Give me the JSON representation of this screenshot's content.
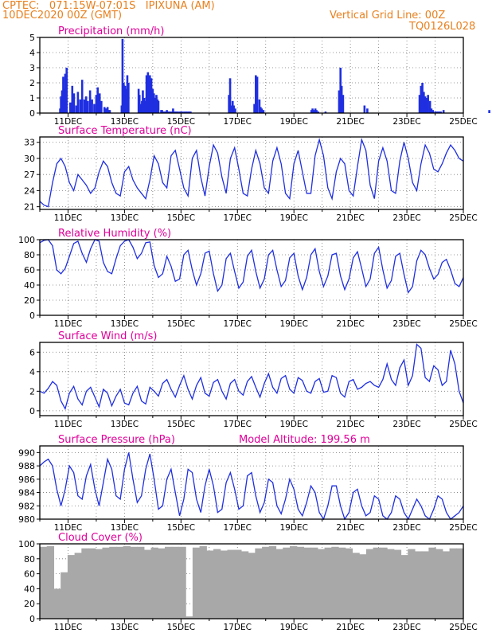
{
  "header": {
    "line1": "CPTEC:   071:15W-07:01S   IPIXUNA (AM)",
    "line2": "10DEC2020 00Z (GMT)",
    "grid_note": "Vertical Grid Line: 00Z",
    "code": "TQ0126L028"
  },
  "colors": {
    "header": "#e8801e",
    "title": "#e0009a",
    "series": "#1f2fe0",
    "cloud": "#a8a8a8",
    "grid": "#777777"
  },
  "chart_data": [
    {
      "type": "bar",
      "title": "Precipitation (mm/h)",
      "xlabels": [
        "11DEC",
        "13DEC",
        "15DEC",
        "17DEC",
        "19DEC",
        "21DEC",
        "23DEC",
        "25DEC"
      ],
      "ylim": [
        0,
        5
      ],
      "yticks": [
        0,
        1,
        2,
        3,
        4,
        5
      ],
      "x": [
        0.72,
        0.75,
        0.79,
        0.83,
        0.87,
        0.9,
        0.95,
        1.08,
        1.15,
        1.21,
        1.29,
        1.35,
        1.43,
        1.5,
        1.58,
        1.64,
        1.7,
        1.78,
        1.85,
        1.93,
        2.0,
        2.05,
        2.12,
        2.18,
        2.29,
        2.32,
        2.36,
        2.4,
        2.44,
        2.48,
        2.9,
        2.93,
        2.97,
        3.02,
        3.06,
        3.1,
        3.14,
        3.5,
        3.53,
        3.57,
        3.62,
        3.65,
        3.7,
        3.74,
        3.78,
        3.83,
        3.86,
        3.9,
        3.95,
        4.0,
        4.04,
        4.08,
        4.13,
        4.17,
        4.2,
        4.3,
        4.33,
        4.38,
        4.42,
        4.47,
        4.5,
        4.54,
        4.58,
        4.62,
        4.68,
        4.72,
        4.76,
        4.8,
        4.84,
        4.88,
        4.95,
        5.0,
        5.05,
        5.12,
        5.18,
        5.23,
        5.29,
        5.34,
        6.7,
        6.74,
        6.78,
        6.83,
        6.87,
        6.92,
        7.6,
        7.65,
        7.7,
        7.78,
        7.82,
        7.86,
        7.92,
        9.62,
        9.66,
        9.7,
        9.76,
        9.8,
        9.86,
        10.12,
        10.6,
        10.65,
        10.69,
        10.74,
        11.5,
        11.6,
        13.45,
        13.5,
        13.55,
        13.6,
        13.65,
        13.7,
        13.75,
        13.82,
        13.87,
        13.92,
        14.0,
        14.05,
        14.1,
        14.15,
        14.2,
        14.3,
        15.92
      ],
      "values": [
        0.3,
        1.1,
        1.5,
        2.4,
        1.6,
        2.6,
        3.0,
        0.7,
        1.8,
        1.3,
        0.5,
        1.4,
        0.9,
        2.2,
        0.9,
        1.1,
        0.8,
        1.5,
        0.9,
        0.6,
        1.2,
        1.7,
        1.3,
        0.8,
        0.4,
        0.3,
        0.3,
        0.4,
        0.2,
        0.2,
        0.5,
        4.9,
        2.0,
        1.8,
        1.6,
        2.5,
        2.0,
        1.6,
        1.2,
        0.6,
        0.8,
        1.5,
        1.0,
        0.8,
        2.5,
        2.7,
        2.2,
        2.5,
        2.3,
        1.6,
        1.3,
        1.0,
        1.2,
        0.9,
        0.8,
        0.2,
        0.2,
        0.1,
        0.1,
        0.1,
        0.2,
        0.1,
        0.1,
        0.1,
        0.1,
        0.3,
        0.1,
        0.1,
        0.1,
        0.1,
        0.1,
        0.1,
        0.1,
        0.1,
        0.1,
        0.1,
        0.1,
        0.1,
        1.2,
        2.3,
        0.5,
        0.8,
        0.5,
        0.3,
        0.6,
        2.5,
        2.4,
        0.9,
        0.4,
        0.3,
        0.2,
        0.2,
        0.3,
        0.2,
        0.3,
        0.2,
        0.1,
        0.1,
        1.5,
        3.0,
        1.8,
        1.2,
        0.5,
        0.3,
        1.2,
        1.8,
        2.0,
        1.4,
        1.1,
        1.0,
        1.2,
        0.8,
        0.3,
        0.2,
        0.1,
        0.1,
        0.1,
        0.1,
        0.1,
        0.2,
        0.2
      ]
    },
    {
      "type": "line",
      "title": "Surface Temperature (nC)",
      "xlabels": [
        "11DEC",
        "13DEC",
        "15DEC",
        "17DEC",
        "19DEC",
        "21DEC",
        "23DEC",
        "25DEC"
      ],
      "ylim": [
        20.5,
        34
      ],
      "yticks": [
        21,
        24,
        27,
        30,
        33
      ],
      "x": [
        0,
        0.15,
        0.3,
        0.45,
        0.6,
        0.75,
        0.9,
        1.05,
        1.2,
        1.35,
        1.5,
        1.65,
        1.8,
        1.95,
        2.1,
        2.25,
        2.4,
        2.55,
        2.7,
        2.85,
        3.0,
        3.15,
        3.3,
        3.45,
        3.6,
        3.75,
        3.9,
        4.05,
        4.2,
        4.35,
        4.5,
        4.65,
        4.8,
        4.95,
        5.1,
        5.25,
        5.4,
        5.55,
        5.7,
        5.85,
        6.0,
        6.15,
        6.3,
        6.45,
        6.6,
        6.75,
        6.9,
        7.05,
        7.2,
        7.35,
        7.5,
        7.65,
        7.8,
        7.95,
        8.1,
        8.25,
        8.4,
        8.55,
        8.7,
        8.85,
        9.0,
        9.15,
        9.3,
        9.45,
        9.6,
        9.75,
        9.9,
        10.05,
        10.2,
        10.35,
        10.5,
        10.65,
        10.8,
        10.95,
        11.1,
        11.25,
        11.4,
        11.55,
        11.7,
        11.85,
        12.0,
        12.15,
        12.3,
        12.45,
        12.6,
        12.75,
        12.9,
        13.05,
        13.2,
        13.35,
        13.5,
        13.65,
        13.8,
        13.95,
        14.1,
        14.25,
        14.4,
        14.55,
        14.7,
        14.85,
        15.0
      ],
      "values": [
        22.0,
        21.3,
        21.0,
        25.5,
        29.0,
        30.0,
        28.5,
        25.5,
        24.0,
        27.0,
        26.0,
        25.0,
        23.5,
        24.5,
        27.5,
        29.5,
        28.5,
        25.5,
        23.5,
        23.0,
        27.5,
        28.5,
        26.0,
        24.5,
        23.5,
        22.5,
        26.0,
        30.5,
        29.0,
        25.5,
        24.5,
        30.5,
        31.5,
        28.0,
        24.5,
        23.0,
        30.0,
        31.5,
        26.5,
        23.0,
        28.5,
        32.5,
        31.0,
        26.5,
        23.5,
        30.0,
        32.0,
        28.0,
        23.5,
        23.0,
        28.0,
        31.5,
        29.0,
        24.5,
        23.5,
        29.5,
        32.0,
        29.0,
        23.5,
        22.5,
        29.0,
        31.5,
        27.5,
        23.5,
        23.5,
        30.5,
        33.5,
        30.5,
        24.5,
        22.5,
        27.5,
        30.0,
        29.0,
        24.0,
        23.0,
        28.5,
        33.5,
        31.5,
        25.0,
        22.5,
        29.5,
        32.0,
        29.5,
        24.0,
        23.5,
        29.5,
        33.0,
        30.0,
        25.5,
        24.0,
        29.0,
        32.5,
        31.0,
        28.0,
        27.5,
        29.0,
        31.0,
        32.5,
        31.5,
        30.0,
        29.5
      ]
    },
    {
      "type": "line",
      "title": "Relative Humidity (%)",
      "xlabels": [
        "11DEC",
        "13DEC",
        "15DEC",
        "17DEC",
        "19DEC",
        "21DEC",
        "23DEC",
        "25DEC"
      ],
      "ylim": [
        0,
        100
      ],
      "yticks": [
        0,
        20,
        40,
        60,
        80,
        100
      ],
      "x": [
        0,
        0.15,
        0.3,
        0.45,
        0.6,
        0.75,
        0.9,
        1.05,
        1.2,
        1.35,
        1.5,
        1.65,
        1.8,
        1.95,
        2.1,
        2.25,
        2.4,
        2.55,
        2.7,
        2.85,
        3.0,
        3.15,
        3.3,
        3.45,
        3.6,
        3.75,
        3.9,
        4.05,
        4.2,
        4.35,
        4.5,
        4.65,
        4.8,
        4.95,
        5.1,
        5.25,
        5.4,
        5.55,
        5.7,
        5.85,
        6.0,
        6.15,
        6.3,
        6.45,
        6.6,
        6.75,
        6.9,
        7.05,
        7.2,
        7.35,
        7.5,
        7.65,
        7.8,
        7.95,
        8.1,
        8.25,
        8.4,
        8.55,
        8.7,
        8.85,
        9.0,
        9.15,
        9.3,
        9.45,
        9.6,
        9.75,
        9.9,
        10.05,
        10.2,
        10.35,
        10.5,
        10.65,
        10.8,
        10.95,
        11.1,
        11.25,
        11.4,
        11.55,
        11.7,
        11.85,
        12.0,
        12.15,
        12.3,
        12.45,
        12.6,
        12.75,
        12.9,
        13.05,
        13.2,
        13.35,
        13.5,
        13.65,
        13.8,
        13.95,
        14.1,
        14.25,
        14.4,
        14.55,
        14.7,
        14.85,
        15.0
      ],
      "values": [
        96,
        99,
        100,
        92,
        60,
        55,
        62,
        78,
        95,
        98,
        82,
        70,
        88,
        100,
        98,
        70,
        58,
        55,
        75,
        92,
        98,
        100,
        90,
        75,
        82,
        96,
        97,
        66,
        50,
        55,
        78,
        65,
        45,
        48,
        80,
        86,
        60,
        40,
        55,
        82,
        85,
        55,
        32,
        40,
        75,
        82,
        58,
        36,
        44,
        78,
        86,
        58,
        36,
        48,
        80,
        86,
        60,
        38,
        46,
        76,
        82,
        52,
        34,
        50,
        80,
        88,
        58,
        38,
        52,
        80,
        82,
        52,
        34,
        48,
        76,
        84,
        62,
        38,
        48,
        82,
        90,
        60,
        36,
        46,
        78,
        82,
        54,
        30,
        38,
        72,
        86,
        80,
        62,
        48,
        54,
        70,
        74,
        60,
        42,
        38,
        50
      ]
    },
    {
      "type": "line",
      "title": "Surface Wind (m/s)",
      "xlabels": [
        "11DEC",
        "13DEC",
        "15DEC",
        "17DEC",
        "19DEC",
        "21DEC",
        "23DEC",
        "25DEC"
      ],
      "ylim": [
        -0.5,
        7
      ],
      "yticks": [
        0,
        2,
        4,
        6
      ],
      "x": [
        0,
        0.15,
        0.3,
        0.45,
        0.6,
        0.75,
        0.9,
        1.05,
        1.2,
        1.35,
        1.5,
        1.65,
        1.8,
        1.95,
        2.1,
        2.25,
        2.4,
        2.55,
        2.7,
        2.85,
        3.0,
        3.15,
        3.3,
        3.45,
        3.6,
        3.75,
        3.9,
        4.05,
        4.2,
        4.35,
        4.5,
        4.65,
        4.8,
        4.95,
        5.1,
        5.25,
        5.4,
        5.55,
        5.7,
        5.85,
        6.0,
        6.15,
        6.3,
        6.45,
        6.6,
        6.75,
        6.9,
        7.05,
        7.2,
        7.35,
        7.5,
        7.65,
        7.8,
        7.95,
        8.1,
        8.25,
        8.4,
        8.55,
        8.7,
        8.85,
        9.0,
        9.15,
        9.3,
        9.45,
        9.6,
        9.75,
        9.9,
        10.05,
        10.2,
        10.35,
        10.5,
        10.65,
        10.8,
        10.95,
        11.1,
        11.25,
        11.4,
        11.55,
        11.7,
        11.85,
        12.0,
        12.15,
        12.3,
        12.45,
        12.6,
        12.75,
        12.9,
        13.05,
        13.2,
        13.35,
        13.5,
        13.65,
        13.8,
        13.95,
        14.1,
        14.25,
        14.4,
        14.55,
        14.7,
        14.85,
        15.0
      ],
      "values": [
        2.0,
        1.8,
        2.3,
        3.0,
        2.6,
        1.0,
        0.2,
        1.8,
        2.5,
        1.2,
        0.6,
        2.0,
        2.4,
        1.4,
        0.4,
        2.2,
        1.8,
        0.5,
        1.5,
        2.2,
        0.8,
        0.6,
        1.8,
        2.5,
        1.0,
        0.7,
        2.4,
        2.0,
        1.5,
        2.8,
        3.2,
        2.2,
        1.4,
        2.6,
        3.6,
        2.2,
        1.2,
        2.6,
        3.4,
        1.8,
        1.5,
        2.9,
        3.2,
        2.0,
        1.2,
        2.8,
        3.2,
        2.0,
        1.6,
        3.0,
        3.5,
        2.4,
        1.4,
        2.8,
        3.8,
        2.4,
        1.8,
        3.3,
        3.6,
        2.2,
        1.8,
        3.4,
        3.1,
        2.0,
        1.8,
        3.0,
        3.3,
        1.9,
        2.0,
        3.6,
        3.4,
        1.8,
        1.4,
        3.0,
        3.2,
        2.2,
        2.4,
        2.8,
        3.0,
        2.6,
        2.4,
        3.2,
        4.8,
        3.2,
        2.6,
        4.4,
        5.2,
        2.6,
        3.6,
        6.8,
        6.4,
        3.4,
        3.0,
        4.6,
        4.2,
        2.6,
        3.0,
        6.2,
        4.8,
        2.0,
        0.8
      ]
    },
    {
      "type": "line",
      "title": "Surface Pressure (hPa)",
      "annotation": "Model Altitude: 199.56 m",
      "xlabels": [
        "11DEC",
        "13DEC",
        "15DEC",
        "17DEC",
        "19DEC",
        "21DEC",
        "23DEC",
        "25DEC"
      ],
      "ylim": [
        980,
        991
      ],
      "yticks": [
        980,
        982,
        984,
        986,
        988,
        990
      ],
      "x": [
        0,
        0.15,
        0.3,
        0.45,
        0.6,
        0.75,
        0.9,
        1.05,
        1.2,
        1.35,
        1.5,
        1.65,
        1.8,
        1.95,
        2.1,
        2.25,
        2.4,
        2.55,
        2.7,
        2.85,
        3.0,
        3.15,
        3.3,
        3.45,
        3.6,
        3.75,
        3.9,
        4.05,
        4.2,
        4.35,
        4.5,
        4.65,
        4.8,
        4.95,
        5.1,
        5.25,
        5.4,
        5.55,
        5.7,
        5.85,
        6.0,
        6.15,
        6.3,
        6.45,
        6.6,
        6.75,
        6.9,
        7.05,
        7.2,
        7.35,
        7.5,
        7.65,
        7.8,
        7.95,
        8.1,
        8.25,
        8.4,
        8.55,
        8.7,
        8.85,
        9.0,
        9.15,
        9.3,
        9.45,
        9.6,
        9.75,
        9.9,
        10.05,
        10.2,
        10.35,
        10.5,
        10.65,
        10.8,
        10.95,
        11.1,
        11.25,
        11.4,
        11.55,
        11.7,
        11.85,
        12.0,
        12.15,
        12.3,
        12.45,
        12.6,
        12.75,
        12.9,
        13.05,
        13.2,
        13.35,
        13.5,
        13.65,
        13.8,
        13.95,
        14.1,
        14.25,
        14.4,
        14.55,
        14.7,
        14.85,
        15.0
      ],
      "values": [
        988.0,
        988.6,
        989.0,
        988.0,
        984.5,
        982.0,
        984.5,
        988.0,
        987.0,
        983.5,
        983.0,
        986.5,
        988.2,
        984.5,
        982.0,
        985.5,
        989.0,
        987.5,
        983.5,
        983.0,
        987.5,
        990.0,
        986.0,
        982.5,
        983.5,
        987.5,
        989.8,
        986.0,
        981.5,
        982.0,
        986.0,
        987.5,
        984.0,
        980.5,
        983.0,
        987.5,
        987.0,
        983.0,
        981.0,
        985.0,
        987.5,
        985.0,
        981.0,
        981.5,
        985.5,
        987.0,
        984.5,
        981.5,
        982.0,
        986.5,
        987.0,
        983.5,
        981.0,
        982.5,
        986.0,
        985.5,
        982.0,
        980.8,
        983.0,
        986.0,
        984.5,
        981.5,
        980.5,
        982.5,
        985.0,
        984.0,
        981.0,
        980.0,
        982.0,
        985.0,
        985.0,
        982.0,
        980.0,
        981.0,
        984.0,
        984.5,
        982.0,
        980.5,
        981.0,
        983.5,
        983.0,
        980.5,
        980.0,
        981.0,
        983.5,
        983.0,
        981.0,
        980.0,
        981.5,
        983.0,
        982.0,
        980.5,
        980.0,
        981.5,
        983.5,
        983.0,
        981.0,
        980.0,
        980.5,
        981.0,
        982.0
      ]
    },
    {
      "type": "bar",
      "title": "Cloud Cover (%)",
      "xlabels": [
        "11DEC",
        "13DEC",
        "15DEC",
        "17DEC",
        "19DEC",
        "21DEC",
        "23DEC",
        "25DEC"
      ],
      "ylim": [
        0,
        100
      ],
      "yticks": [
        0,
        20,
        40,
        60,
        80,
        100
      ],
      "x": [
        0,
        0.25,
        0.5,
        0.75,
        1.0,
        1.25,
        1.5,
        1.75,
        2.0,
        2.25,
        2.5,
        2.75,
        3.0,
        3.25,
        3.5,
        3.75,
        4.0,
        4.25,
        4.5,
        4.75,
        5.0,
        5.25,
        5.5,
        5.75,
        6.0,
        6.25,
        6.5,
        6.75,
        7.0,
        7.25,
        7.5,
        7.75,
        8.0,
        8.25,
        8.5,
        8.75,
        9.0,
        9.25,
        9.5,
        9.75,
        10.0,
        10.25,
        10.5,
        10.75,
        11.0,
        11.25,
        11.5,
        11.75,
        12.0,
        12.25,
        12.5,
        12.75,
        13.0,
        13.25,
        13.5,
        13.75,
        14.0,
        14.25,
        14.5,
        14.75,
        15.0
      ],
      "values": [
        96,
        97,
        40,
        62,
        85,
        88,
        94,
        94,
        93,
        95,
        96,
        96,
        97,
        96,
        96,
        92,
        95,
        94,
        96,
        96,
        96,
        3,
        95,
        97,
        91,
        93,
        91,
        92,
        92,
        90,
        88,
        94,
        96,
        97,
        93,
        95,
        97,
        96,
        95,
        95,
        93,
        95,
        96,
        95,
        94,
        88,
        86,
        93,
        95,
        95,
        93,
        92,
        85,
        93,
        90,
        90,
        95,
        93,
        90,
        94,
        94
      ]
    }
  ]
}
